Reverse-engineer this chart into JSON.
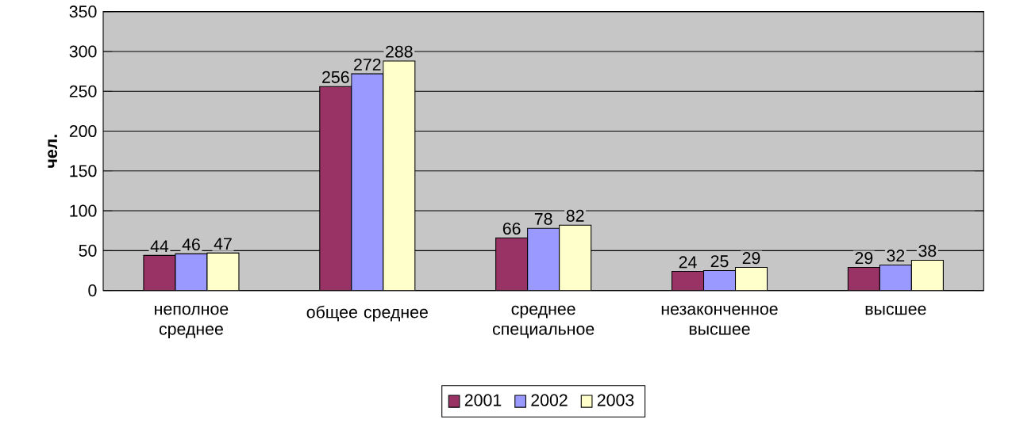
{
  "chart_data": {
    "type": "bar",
    "ylabel": "чел.",
    "categories": [
      "неполное среднее",
      "общее среднее",
      "среднее специальное",
      "незаконченное высшее",
      "высшее"
    ],
    "series": [
      {
        "name": "2001",
        "color": "#993366",
        "values": [
          44,
          256,
          66,
          24,
          29
        ]
      },
      {
        "name": "2002",
        "color": "#9999ff",
        "values": [
          46,
          272,
          78,
          25,
          32
        ]
      },
      {
        "name": "2003",
        "color": "#ffffcc",
        "values": [
          47,
          288,
          82,
          29,
          38
        ]
      }
    ],
    "ylim": [
      0,
      350
    ],
    "yticks": [
      0,
      50,
      100,
      150,
      200,
      250,
      300,
      350
    ],
    "grid": "y",
    "legend": "bottom",
    "data_labels": true
  }
}
